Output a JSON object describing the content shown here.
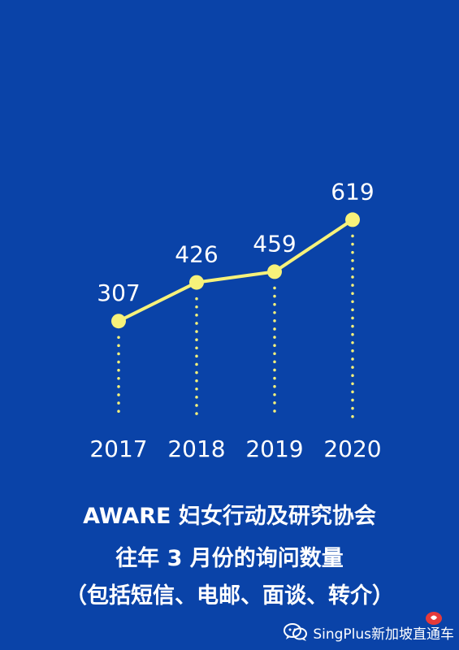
{
  "colors": {
    "background": "#0a43a8",
    "line": "#f7f27a",
    "dots": "#f7f27a",
    "text": "#ffffff"
  },
  "chart_data": {
    "type": "line",
    "categories": [
      "2017",
      "2018",
      "2019",
      "2020"
    ],
    "values": [
      307,
      426,
      459,
      619
    ],
    "ylim": [
      0,
      700
    ],
    "grid": false
  },
  "caption": {
    "line1": "AWARE 妇女行动及研究协会",
    "line2": "往年 3 月份的询问数量",
    "line3": "（包括短信、电邮、面谈、转介）"
  },
  "watermark": {
    "icon": "wechat-icon",
    "text": "SingPlus新加坡直通车"
  }
}
